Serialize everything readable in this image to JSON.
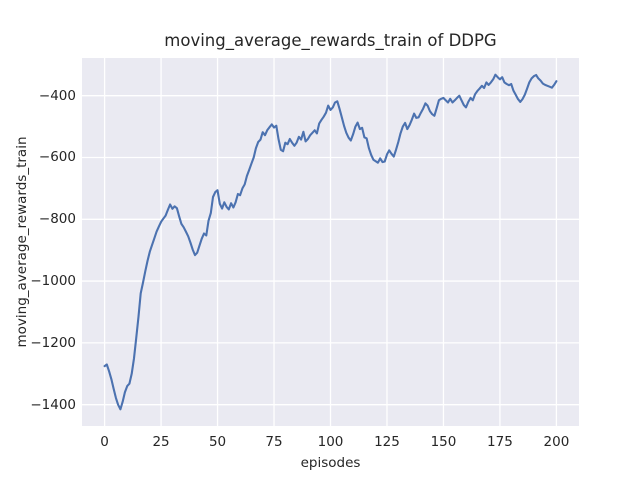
{
  "chart_data": {
    "type": "line",
    "title": "moving_average_rewards_train of DDPG",
    "xlabel": "episodes",
    "ylabel": "moving_average_rewards_train",
    "grid": true,
    "legend_position": "none",
    "xlim": [
      -10,
      210
    ],
    "ylim": [
      -1469,
      -278
    ],
    "xticks": [
      0,
      25,
      50,
      75,
      100,
      125,
      150,
      175,
      200
    ],
    "xtick_labels": [
      "0",
      "25",
      "50",
      "75",
      "100",
      "125",
      "150",
      "175",
      "200"
    ],
    "yticks": [
      -400,
      -600,
      -800,
      -1000,
      -1200,
      -1400
    ],
    "ytick_labels": [
      "−400",
      "−600",
      "−800",
      "−1000",
      "−1200",
      "−1400"
    ],
    "colors": {
      "line": "#4c72b0",
      "axes_background": "#eaeaf2",
      "grid": "#ffffff",
      "text": "#262626",
      "figure_background": "#ffffff"
    },
    "series": [
      {
        "name": "moving_average_rewards_train",
        "color": "#4c72b0",
        "x": [
          0,
          1,
          2,
          3,
          4,
          5,
          6,
          7,
          8,
          9,
          10,
          11,
          12,
          13,
          14,
          15,
          16,
          17,
          18,
          19,
          20,
          21,
          22,
          23,
          24,
          25,
          26,
          27,
          28,
          29,
          30,
          31,
          32,
          33,
          34,
          35,
          36,
          37,
          38,
          39,
          40,
          41,
          42,
          43,
          44,
          45,
          46,
          47,
          48,
          49,
          50,
          51,
          52,
          53,
          54,
          55,
          56,
          57,
          58,
          59,
          60,
          61,
          62,
          63,
          64,
          65,
          66,
          67,
          68,
          69,
          70,
          71,
          72,
          73,
          74,
          75,
          76,
          77,
          78,
          79,
          80,
          81,
          82,
          83,
          84,
          85,
          86,
          87,
          88,
          89,
          90,
          91,
          92,
          93,
          94,
          95,
          96,
          97,
          98,
          99,
          100,
          101,
          102,
          103,
          104,
          105,
          106,
          107,
          108,
          109,
          110,
          111,
          112,
          113,
          114,
          115,
          116,
          117,
          118,
          119,
          120,
          121,
          122,
          123,
          124,
          125,
          126,
          127,
          128,
          129,
          130,
          131,
          132,
          133,
          134,
          135,
          136,
          137,
          138,
          139,
          140,
          141,
          142,
          143,
          144,
          145,
          146,
          147,
          148,
          149,
          150,
          151,
          152,
          153,
          154,
          155,
          156,
          157,
          158,
          159,
          160,
          161,
          162,
          163,
          164,
          165,
          166,
          167,
          168,
          169,
          170,
          171,
          172,
          173,
          174,
          175,
          176,
          177,
          178,
          179,
          180,
          181,
          182,
          183,
          184,
          185,
          186,
          187,
          188,
          189,
          190,
          191,
          192,
          193,
          194,
          195,
          196,
          197,
          198,
          199,
          200
        ],
        "y": [
          -1275,
          -1270,
          -1292,
          -1318,
          -1348,
          -1378,
          -1400,
          -1415,
          -1390,
          -1360,
          -1340,
          -1332,
          -1300,
          -1250,
          -1185,
          -1115,
          -1040,
          -1005,
          -968,
          -935,
          -905,
          -884,
          -862,
          -840,
          -824,
          -808,
          -798,
          -788,
          -770,
          -752,
          -766,
          -758,
          -764,
          -790,
          -815,
          -826,
          -840,
          -855,
          -875,
          -898,
          -916,
          -908,
          -885,
          -863,
          -846,
          -852,
          -805,
          -780,
          -728,
          -712,
          -706,
          -750,
          -765,
          -745,
          -760,
          -768,
          -748,
          -762,
          -745,
          -718,
          -722,
          -700,
          -687,
          -660,
          -640,
          -620,
          -600,
          -570,
          -550,
          -542,
          -518,
          -528,
          -512,
          -502,
          -493,
          -503,
          -497,
          -540,
          -575,
          -580,
          -552,
          -557,
          -540,
          -552,
          -562,
          -552,
          -533,
          -542,
          -517,
          -548,
          -540,
          -528,
          -520,
          -512,
          -522,
          -490,
          -478,
          -468,
          -455,
          -432,
          -446,
          -438,
          -422,
          -418,
          -442,
          -470,
          -498,
          -520,
          -536,
          -545,
          -525,
          -500,
          -487,
          -508,
          -504,
          -535,
          -538,
          -570,
          -592,
          -607,
          -612,
          -617,
          -603,
          -615,
          -613,
          -590,
          -577,
          -588,
          -597,
          -575,
          -550,
          -522,
          -500,
          -488,
          -508,
          -495,
          -478,
          -458,
          -472,
          -470,
          -455,
          -442,
          -425,
          -432,
          -450,
          -460,
          -465,
          -440,
          -415,
          -410,
          -407,
          -415,
          -422,
          -410,
          -422,
          -415,
          -407,
          -400,
          -415,
          -430,
          -438,
          -420,
          -407,
          -415,
          -395,
          -385,
          -377,
          -368,
          -375,
          -357,
          -365,
          -357,
          -347,
          -332,
          -340,
          -347,
          -340,
          -357,
          -362,
          -366,
          -362,
          -384,
          -397,
          -411,
          -420,
          -411,
          -397,
          -378,
          -357,
          -344,
          -337,
          -333,
          -344,
          -351,
          -361,
          -365,
          -368,
          -371,
          -374,
          -365,
          -353
        ]
      }
    ]
  }
}
